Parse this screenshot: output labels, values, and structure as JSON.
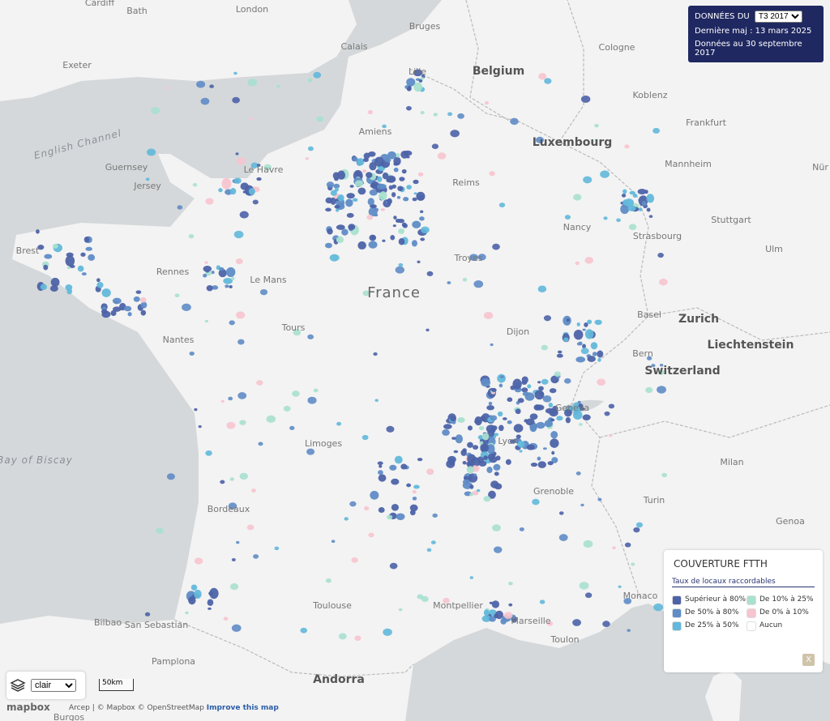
{
  "header": {
    "label": "DONNÉES DU",
    "period": "T3 2017",
    "updated": "Dernière maj : 13 mars 2025",
    "data_date": "Données au 30 septembre 2017"
  },
  "legend": {
    "title": "COUVERTURE FTTH",
    "subtitle": "Taux de locaux raccordables",
    "items": [
      {
        "label": "Supérieur à 80%",
        "color": "#4d63a8"
      },
      {
        "label": "De 50% à 80%",
        "color": "#5f8cc6"
      },
      {
        "label": "De 25% à 50%",
        "color": "#62b8da"
      },
      {
        "label": "De 10% à 25%",
        "color": "#a9e0cf"
      },
      {
        "label": "De 0% à 10%",
        "color": "#f7c4cf"
      },
      {
        "label": "Aucun",
        "color": "#ffffff"
      }
    ],
    "close": "X"
  },
  "controls": {
    "style": "clair",
    "scale": "50km"
  },
  "attribution": {
    "text": "Arcep | © Mapbox © OpenStreetMap",
    "improve": "Improve this map",
    "logo": "mapbox"
  },
  "map_labels": [
    "London",
    "Bath",
    "Cardiff",
    "Exeter",
    "English Channel",
    "Guernsey",
    "Jersey",
    "Calais",
    "Bruges",
    "Lille",
    "Belgium",
    "Cologne",
    "Amiens",
    "Le Havre",
    "Luxembourg",
    "Koblenz",
    "Frankfurt",
    "Mannheim",
    "Nür",
    "Reims",
    "Brest",
    "Rennes",
    "Le Mans",
    "Nancy",
    "Strasbourg",
    "Stuttgart",
    "Ulm",
    "Troyes",
    "France",
    "Tours",
    "Nantes",
    "Dijon",
    "Basel",
    "Zurich",
    "Liechtenstein",
    "Bern",
    "Switzerland",
    "Geneva",
    "Lyon",
    "Limoges",
    "Bay of Biscay",
    "Milan",
    "Grenoble",
    "Turin",
    "Bordeaux",
    "Genoa",
    "Monaco",
    "Montpellier",
    "Toulouse",
    "Marseille",
    "Toulon",
    "Bilbao",
    "San Sebastian",
    "Pamplona",
    "Andorra",
    "Burgos"
  ]
}
